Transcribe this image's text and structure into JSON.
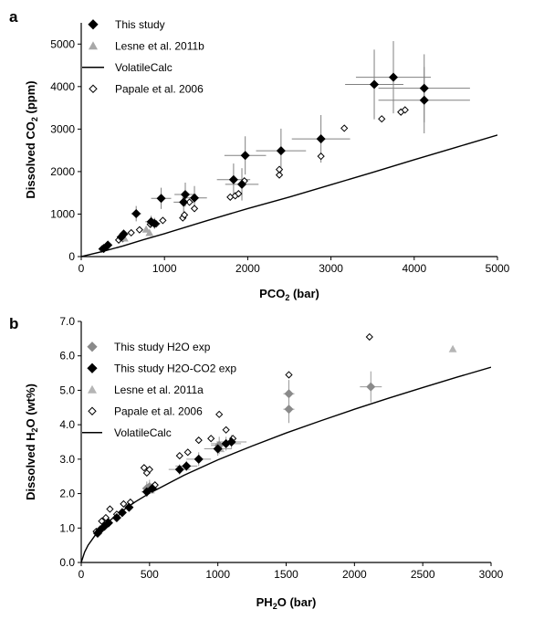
{
  "chart_data": [
    {
      "type": "scatter",
      "panel_label": "a",
      "xlabel_main": "PCO",
      "xlabel_sub": "2",
      "xlabel_unit": " (bar)",
      "ylabel_main": "Dissolved CO",
      "ylabel_sub": "2",
      "ylabel_unit": " (ppm)",
      "xlim": [
        0,
        5000
      ],
      "ylim": [
        0,
        5500
      ],
      "xticks": [
        0,
        1000,
        2000,
        3000,
        4000,
        5000
      ],
      "yticks": [
        0,
        1000,
        2000,
        3000,
        4000,
        5000
      ],
      "tick_labels_x": [
        "0",
        "1000",
        "2000",
        "3000",
        "4000",
        "5000"
      ],
      "tick_labels_y": [
        "0",
        "1000",
        "2000",
        "3000",
        "4000",
        "5000"
      ],
      "grid": false,
      "legend_position": "top-left",
      "series": [
        {
          "name": "This study",
          "marker": "diamond-filled",
          "color": "#000000",
          "points": [
            {
              "x": 270,
              "y": 190,
              "xerr": 30,
              "yerr": 40
            },
            {
              "x": 320,
              "y": 270,
              "xerr": 30,
              "yerr": 50
            },
            {
              "x": 480,
              "y": 460,
              "xerr": 40,
              "yerr": 80
            },
            {
              "x": 510,
              "y": 530,
              "xerr": 40,
              "yerr": 90
            },
            {
              "x": 660,
              "y": 1010,
              "xerr": 60,
              "yerr": 180
            },
            {
              "x": 840,
              "y": 820,
              "xerr": 70,
              "yerr": 140
            },
            {
              "x": 880,
              "y": 780,
              "xerr": 70,
              "yerr": 130
            },
            {
              "x": 960,
              "y": 1370,
              "xerr": 120,
              "yerr": 250
            },
            {
              "x": 1230,
              "y": 1280,
              "xerr": 120,
              "yerr": 250
            },
            {
              "x": 1250,
              "y": 1460,
              "xerr": 130,
              "yerr": 280
            },
            {
              "x": 1360,
              "y": 1380,
              "xerr": 150,
              "yerr": 280
            },
            {
              "x": 1830,
              "y": 1810,
              "xerr": 200,
              "yerr": 380
            },
            {
              "x": 1930,
              "y": 1700,
              "xerr": 200,
              "yerr": 380
            },
            {
              "x": 1970,
              "y": 2380,
              "xerr": 250,
              "yerr": 450
            },
            {
              "x": 2400,
              "y": 2490,
              "xerr": 300,
              "yerr": 520
            },
            {
              "x": 2880,
              "y": 2770,
              "xerr": 350,
              "yerr": 560
            },
            {
              "x": 3520,
              "y": 4050,
              "xerr": 350,
              "yerr": 820
            },
            {
              "x": 3750,
              "y": 4220,
              "xerr": 450,
              "yerr": 850
            },
            {
              "x": 4120,
              "y": 3960,
              "xerr": 550,
              "yerr": 800
            },
            {
              "x": 4120,
              "y": 3680,
              "xerr": 550,
              "yerr": 780
            }
          ]
        },
        {
          "name": "Lesne et al. 2011b",
          "marker": "triangle-filled",
          "color": "#a8a8a8",
          "points": [
            {
              "x": 520,
              "y": 430
            },
            {
              "x": 780,
              "y": 640
            },
            {
              "x": 820,
              "y": 560
            }
          ]
        },
        {
          "name": "VolatileCalc",
          "marker": "line",
          "color": "#000000",
          "points": [
            {
              "x": 0,
              "y": 0
            },
            {
              "x": 250,
              "y": 115
            },
            {
              "x": 500,
              "y": 250
            },
            {
              "x": 750,
              "y": 400
            },
            {
              "x": 1000,
              "y": 540
            },
            {
              "x": 1500,
              "y": 840
            },
            {
              "x": 2000,
              "y": 1130
            },
            {
              "x": 2500,
              "y": 1400
            },
            {
              "x": 3000,
              "y": 1690
            },
            {
              "x": 3500,
              "y": 1980
            },
            {
              "x": 4000,
              "y": 2280
            },
            {
              "x": 4500,
              "y": 2570
            },
            {
              "x": 5000,
              "y": 2860
            }
          ]
        },
        {
          "name": "Papale et al. 2006",
          "marker": "diamond-open",
          "color": "#000000",
          "points": [
            {
              "x": 250,
              "y": 180
            },
            {
              "x": 300,
              "y": 220
            },
            {
              "x": 450,
              "y": 390
            },
            {
              "x": 500,
              "y": 420
            },
            {
              "x": 600,
              "y": 560
            },
            {
              "x": 700,
              "y": 630
            },
            {
              "x": 830,
              "y": 760
            },
            {
              "x": 900,
              "y": 770
            },
            {
              "x": 980,
              "y": 850
            },
            {
              "x": 1220,
              "y": 910
            },
            {
              "x": 1240,
              "y": 980
            },
            {
              "x": 1300,
              "y": 1280
            },
            {
              "x": 1360,
              "y": 1130
            },
            {
              "x": 1790,
              "y": 1400
            },
            {
              "x": 1850,
              "y": 1430
            },
            {
              "x": 1890,
              "y": 1480
            },
            {
              "x": 1960,
              "y": 1780
            },
            {
              "x": 2380,
              "y": 1920
            },
            {
              "x": 2380,
              "y": 2050
            },
            {
              "x": 2880,
              "y": 2360
            },
            {
              "x": 3160,
              "y": 3020
            },
            {
              "x": 3610,
              "y": 3240
            },
            {
              "x": 3840,
              "y": 3400
            },
            {
              "x": 3890,
              "y": 3450
            }
          ]
        }
      ]
    },
    {
      "type": "scatter",
      "panel_label": "b",
      "xlabel_main": "PH",
      "xlabel_sub": "2",
      "xlabel_unit": "O (bar)",
      "ylabel_main": "Dissolved H",
      "ylabel_sub": "2",
      "ylabel_unit": "O (wt%)",
      "xlim": [
        0,
        3000
      ],
      "ylim": [
        0,
        7
      ],
      "xticks": [
        0,
        500,
        1000,
        1500,
        2000,
        2500,
        3000
      ],
      "yticks": [
        0,
        1,
        2,
        3,
        4,
        5,
        6,
        7
      ],
      "tick_labels_x": [
        "0",
        "500",
        "1000",
        "1500",
        "2000",
        "2500",
        "3000"
      ],
      "tick_labels_y": [
        "0.0",
        "1.0",
        "2.0",
        "3.0",
        "4.0",
        "5.0",
        "6.0",
        "7.0"
      ],
      "grid": false,
      "legend_position": "top-left",
      "series": [
        {
          "name": "This study H2O exp",
          "marker": "diamond-filled",
          "color": "#8a8a8a",
          "points": [
            {
              "x": 480,
              "y": 2.15,
              "xerr": 30,
              "yerr": 0.2
            },
            {
              "x": 500,
              "y": 2.2,
              "xerr": 30,
              "yerr": 0.2
            },
            {
              "x": 1010,
              "y": 3.4,
              "xerr": 60,
              "yerr": 0.25
            },
            {
              "x": 1520,
              "y": 4.9,
              "xerr": 40,
              "yerr": 0.4
            },
            {
              "x": 1520,
              "y": 4.45,
              "xerr": 40,
              "yerr": 0.4
            },
            {
              "x": 2120,
              "y": 5.1,
              "xerr": 80,
              "yerr": 0.45
            }
          ]
        },
        {
          "name": "This study H2O-CO2 exp",
          "marker": "diamond-filled",
          "color": "#000000",
          "points": [
            {
              "x": 120,
              "y": 0.85,
              "xerr": 15,
              "yerr": 0.08
            },
            {
              "x": 140,
              "y": 0.95,
              "xerr": 15,
              "yerr": 0.08
            },
            {
              "x": 170,
              "y": 1.05,
              "xerr": 15,
              "yerr": 0.08
            },
            {
              "x": 200,
              "y": 1.15,
              "xerr": 20,
              "yerr": 0.1
            },
            {
              "x": 260,
              "y": 1.3,
              "xerr": 20,
              "yerr": 0.1
            },
            {
              "x": 300,
              "y": 1.45,
              "xerr": 25,
              "yerr": 0.1
            },
            {
              "x": 350,
              "y": 1.6,
              "xerr": 30,
              "yerr": 0.1
            },
            {
              "x": 480,
              "y": 2.05,
              "xerr": 40,
              "yerr": 0.15
            },
            {
              "x": 520,
              "y": 2.15,
              "xerr": 40,
              "yerr": 0.15
            },
            {
              "x": 720,
              "y": 2.7,
              "xerr": 80,
              "yerr": 0.15
            },
            {
              "x": 770,
              "y": 2.8,
              "xerr": 80,
              "yerr": 0.15
            },
            {
              "x": 860,
              "y": 3.0,
              "xerr": 90,
              "yerr": 0.2
            },
            {
              "x": 1000,
              "y": 3.3,
              "xerr": 100,
              "yerr": 0.2
            },
            {
              "x": 1060,
              "y": 3.45,
              "xerr": 110,
              "yerr": 0.2
            },
            {
              "x": 1100,
              "y": 3.5,
              "xerr": 110,
              "yerr": 0.2
            }
          ]
        },
        {
          "name": "Lesne et al. 2011a",
          "marker": "triangle-filled",
          "color": "#b5b5b5",
          "points": [
            {
              "x": 510,
              "y": 2.1
            },
            {
              "x": 1020,
              "y": 3.3
            },
            {
              "x": 2720,
              "y": 6.2
            }
          ]
        },
        {
          "name": "Papale et al. 2006",
          "marker": "diamond-open",
          "color": "#000000",
          "points": [
            {
              "x": 110,
              "y": 0.9
            },
            {
              "x": 150,
              "y": 1.2
            },
            {
              "x": 180,
              "y": 1.3
            },
            {
              "x": 210,
              "y": 1.55
            },
            {
              "x": 260,
              "y": 1.4
            },
            {
              "x": 310,
              "y": 1.7
            },
            {
              "x": 360,
              "y": 1.75
            },
            {
              "x": 460,
              "y": 2.75
            },
            {
              "x": 480,
              "y": 2.6
            },
            {
              "x": 500,
              "y": 2.7
            },
            {
              "x": 540,
              "y": 2.25
            },
            {
              "x": 720,
              "y": 3.1
            },
            {
              "x": 780,
              "y": 3.2
            },
            {
              "x": 860,
              "y": 3.55
            },
            {
              "x": 950,
              "y": 3.6
            },
            {
              "x": 1010,
              "y": 4.3
            },
            {
              "x": 1060,
              "y": 3.85
            },
            {
              "x": 1110,
              "y": 3.6
            },
            {
              "x": 1520,
              "y": 5.45
            },
            {
              "x": 2110,
              "y": 6.55
            }
          ]
        },
        {
          "name": "VolatileCalc",
          "marker": "line",
          "color": "#000000",
          "points": [
            {
              "x": 0,
              "y": 0
            },
            {
              "x": 25,
              "y": 0.3
            },
            {
              "x": 50,
              "y": 0.5
            },
            {
              "x": 100,
              "y": 0.78
            },
            {
              "x": 150,
              "y": 1.0
            },
            {
              "x": 200,
              "y": 1.19
            },
            {
              "x": 300,
              "y": 1.5
            },
            {
              "x": 400,
              "y": 1.77
            },
            {
              "x": 500,
              "y": 2.01
            },
            {
              "x": 750,
              "y": 2.53
            },
            {
              "x": 1000,
              "y": 2.98
            },
            {
              "x": 1250,
              "y": 3.38
            },
            {
              "x": 1500,
              "y": 3.76
            },
            {
              "x": 1750,
              "y": 4.11
            },
            {
              "x": 2000,
              "y": 4.45
            },
            {
              "x": 2250,
              "y": 4.77
            },
            {
              "x": 2500,
              "y": 5.08
            },
            {
              "x": 2750,
              "y": 5.38
            },
            {
              "x": 3000,
              "y": 5.67
            }
          ]
        }
      ]
    }
  ]
}
